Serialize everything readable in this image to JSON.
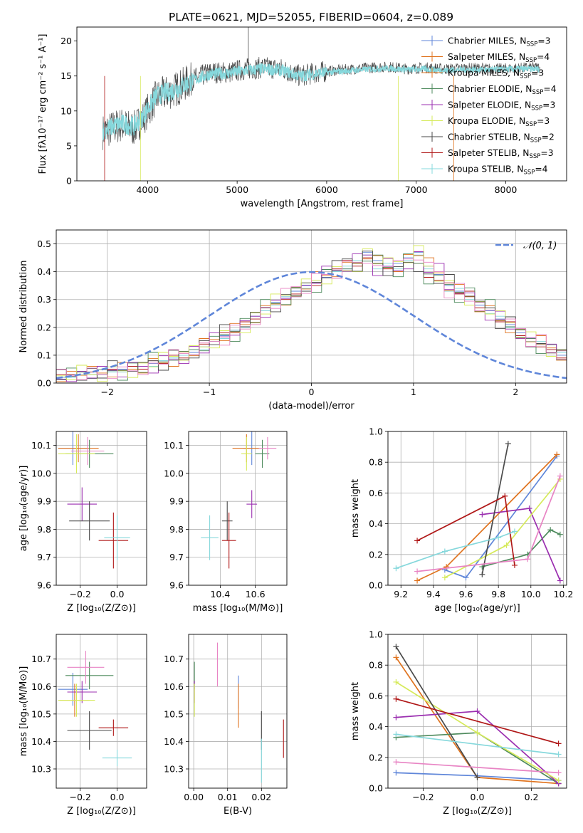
{
  "figure_title": "PLATE=0621, MJD=52055, FIBERID=0604, z=0.089",
  "colors": {
    "c0": "#5f86d9",
    "c1": "#e07420",
    "c2": "#4d8a5c",
    "c3": "#9b2fb0",
    "c4": "#d6ea5a",
    "c5": "#4a4a4a",
    "c6": "#b01818",
    "c7": "#e884c4",
    "c8": "#86d8dc"
  },
  "chart_data": [
    {
      "type": "line",
      "name": "spectrum",
      "xlabel": "wavelength [Angstrom, rest frame]",
      "ylabel": "Flux [fλ10⁻¹⁷ erg cm⁻² s⁻¹ A⁻¹]",
      "xlim": [
        3210,
        8680
      ],
      "ylim": [
        0,
        22
      ],
      "xticks": [
        4000,
        5000,
        6000,
        7000,
        8000
      ],
      "yticks": [
        0,
        5,
        10,
        15,
        20
      ],
      "legend_position": "top-right",
      "legend": [
        "Chabrier MILES, N_SSP=3",
        "Salpeter MILES, N_SSP=4",
        "Kroupa MILES, N_SSP=3",
        "Chabrier ELODIE, N_SSP=4",
        "Salpeter ELODIE, N_SSP=3",
        "Kroupa ELODIE, N_SSP=3",
        "Chabrier STELIB, N_SSP=2",
        "Salpeter STELIB, N_SSP=3",
        "Kroupa STELIB, N_SSP=4"
      ],
      "series": [
        {
          "color_key": "c5",
          "x": [
            3500,
            3700,
            3850,
            3950,
            4100,
            4300,
            4500,
            4700,
            4900,
            5100,
            5300,
            5500,
            5700,
            5900,
            6100,
            6300,
            6500,
            6700,
            6900,
            7100,
            7300,
            7500,
            7700,
            7900,
            8100,
            8300
          ],
          "y": [
            7.0,
            8.0,
            7.5,
            9.0,
            12.0,
            13.0,
            14.5,
            15.5,
            15.5,
            16.0,
            16.2,
            16.0,
            15.0,
            15.5,
            15.8,
            16.0,
            16.2,
            16.3,
            16.0,
            16.2,
            16.0,
            16.1,
            16.1,
            16.0,
            16.1,
            16.2
          ]
        },
        {
          "color_key": "c8",
          "x": [
            3500,
            3700,
            3850,
            3950,
            4100,
            4300,
            4500,
            4700,
            4900,
            5100,
            5300,
            5500,
            5700,
            5900,
            6100,
            6300,
            6500,
            6700,
            6900,
            7100,
            7300,
            7500,
            7700,
            7900,
            8100,
            8300
          ],
          "y": [
            7.2,
            8.2,
            7.8,
            9.3,
            12.2,
            13.0,
            14.3,
            15.3,
            15.4,
            15.8,
            16.0,
            15.8,
            15.0,
            15.4,
            15.6,
            15.8,
            16.0,
            16.1,
            15.9,
            16.0,
            15.8,
            15.9,
            15.9,
            15.9,
            16.0,
            16.0
          ]
        }
      ]
    },
    {
      "type": "bar",
      "name": "residuals",
      "xlabel": "(data-model)/error",
      "ylabel": "Normed distribution",
      "xlim": [
        -2.5,
        2.5
      ],
      "ylim": [
        0,
        0.55
      ],
      "xticks": [
        -2,
        -1,
        0,
        1,
        2
      ],
      "yticks": [
        0.0,
        0.1,
        0.2,
        0.3,
        0.4,
        0.5
      ],
      "legend_position": "top-right",
      "legend": [
        "𝒩(0, 1)"
      ],
      "bin_width": 0.1,
      "series": [
        {
          "color_key": "c0",
          "bins_start": -2.5,
          "values": [
            0.02,
            0.03,
            0.04,
            0.03,
            0.03,
            0.04,
            0.05,
            0.05,
            0.06,
            0.07,
            0.08,
            0.09,
            0.1,
            0.11,
            0.13,
            0.15,
            0.17,
            0.19,
            0.21,
            0.24,
            0.26,
            0.29,
            0.31,
            0.33,
            0.35,
            0.37,
            0.38,
            0.4,
            0.41,
            0.43,
            0.47,
            0.44,
            0.42,
            0.43,
            0.45,
            0.47,
            0.42,
            0.39,
            0.35,
            0.33,
            0.31,
            0.28,
            0.26,
            0.23,
            0.21,
            0.18,
            0.16,
            0.14,
            0.12,
            0.1
          ]
        },
        {
          "color_key": "c6",
          "bins_start": -2.5,
          "values": [
            0.03,
            0.03,
            0.04,
            0.04,
            0.03,
            0.05,
            0.04,
            0.06,
            0.05,
            0.08,
            0.07,
            0.1,
            0.09,
            0.12,
            0.14,
            0.15,
            0.18,
            0.18,
            0.22,
            0.23,
            0.27,
            0.28,
            0.3,
            0.32,
            0.36,
            0.35,
            0.39,
            0.41,
            0.44,
            0.42,
            0.45,
            0.43,
            0.41,
            0.4,
            0.44,
            0.43,
            0.38,
            0.37,
            0.36,
            0.32,
            0.33,
            0.27,
            0.27,
            0.22,
            0.22,
            0.17,
            0.16,
            0.13,
            0.12,
            0.09
          ]
        },
        {
          "color_key": "c8",
          "bins_start": -2.5,
          "values": [
            0.02,
            0.02,
            0.03,
            0.03,
            0.03,
            0.04,
            0.04,
            0.05,
            0.06,
            0.06,
            0.08,
            0.09,
            0.1,
            0.12,
            0.12,
            0.15,
            0.16,
            0.19,
            0.2,
            0.24,
            0.26,
            0.28,
            0.31,
            0.34,
            0.34,
            0.37,
            0.39,
            0.4,
            0.42,
            0.44,
            0.46,
            0.41,
            0.43,
            0.41,
            0.44,
            0.46,
            0.41,
            0.4,
            0.33,
            0.34,
            0.3,
            0.29,
            0.25,
            0.24,
            0.2,
            0.19,
            0.15,
            0.15,
            0.11,
            0.11
          ]
        }
      ],
      "reference_curve": {
        "name": "𝒩(0, 1)",
        "color_key": "c0"
      }
    },
    {
      "type": "scatter",
      "name": "age-vs-Z",
      "xlabel": "Z [log₁₀(Z/Z⊙)]",
      "ylabel": "age  [log₁₀(age/yr)]",
      "xlim": [
        -0.33,
        0.16
      ],
      "ylim": [
        9.6,
        10.15
      ],
      "xticks": [
        -0.2,
        0.0
      ],
      "yticks": [
        9.6,
        9.7,
        9.8,
        9.9,
        10.0,
        10.1
      ],
      "points": [
        {
          "color_key": "c0",
          "x": -0.24,
          "y": 10.09,
          "xerr": 0.08,
          "yerr": 0.06
        },
        {
          "color_key": "c1",
          "x": -0.21,
          "y": 10.09,
          "xerr": 0.11,
          "yerr": 0.05
        },
        {
          "color_key": "c2",
          "x": -0.15,
          "y": 10.07,
          "xerr": 0.13,
          "yerr": 0.05
        },
        {
          "color_key": "c3",
          "x": -0.19,
          "y": 9.89,
          "xerr": 0.08,
          "yerr": 0.06
        },
        {
          "color_key": "c4",
          "x": -0.22,
          "y": 10.07,
          "xerr": 0.1,
          "yerr": 0.07
        },
        {
          "color_key": "c5",
          "x": -0.15,
          "y": 9.83,
          "xerr": 0.11,
          "yerr": 0.07
        },
        {
          "color_key": "c6",
          "x": -0.02,
          "y": 9.76,
          "xerr": 0.08,
          "yerr": 0.1
        },
        {
          "color_key": "c7",
          "x": -0.16,
          "y": 10.08,
          "xerr": 0.09,
          "yerr": 0.05
        },
        {
          "color_key": "c8",
          "x": 0.0,
          "y": 9.77,
          "xerr": 0.07,
          "yerr": 0.08
        }
      ]
    },
    {
      "type": "scatter",
      "name": "age-vs-mass",
      "xlabel": "mass [log₁₀(M/M⊙)]",
      "ylabel": "",
      "xlim": [
        10.22,
        10.78
      ],
      "ylim": [
        9.6,
        10.15
      ],
      "xticks": [
        10.4,
        10.6
      ],
      "yticks": [
        9.6,
        9.7,
        9.8,
        9.9,
        10.0,
        10.1
      ],
      "points": [
        {
          "color_key": "c0",
          "x": 10.58,
          "y": 10.09,
          "xerr": 0.05,
          "yerr": 0.06
        },
        {
          "color_key": "c1",
          "x": 10.55,
          "y": 10.09,
          "xerr": 0.08,
          "yerr": 0.05
        },
        {
          "color_key": "c2",
          "x": 10.64,
          "y": 10.07,
          "xerr": 0.04,
          "yerr": 0.05
        },
        {
          "color_key": "c3",
          "x": 10.58,
          "y": 9.89,
          "xerr": 0.03,
          "yerr": 0.05
        },
        {
          "color_key": "c4",
          "x": 10.55,
          "y": 10.07,
          "xerr": 0.03,
          "yerr": 0.06
        },
        {
          "color_key": "c5",
          "x": 10.44,
          "y": 9.83,
          "xerr": 0.03,
          "yerr": 0.07
        },
        {
          "color_key": "c6",
          "x": 10.45,
          "y": 9.76,
          "xerr": 0.04,
          "yerr": 0.1
        },
        {
          "color_key": "c7",
          "x": 10.67,
          "y": 10.09,
          "xerr": 0.05,
          "yerr": 0.04
        },
        {
          "color_key": "c8",
          "x": 10.34,
          "y": 9.77,
          "xerr": 0.05,
          "yerr": 0.08
        }
      ]
    },
    {
      "type": "line",
      "name": "mass-weight-vs-age",
      "xlabel": "age  [log₁₀(age/yr)]",
      "ylabel": "mass weight",
      "xlim": [
        9.12,
        10.22
      ],
      "ylim": [
        0,
        1.0
      ],
      "xticks": [
        9.2,
        9.4,
        9.6,
        9.8,
        10.0,
        10.2
      ],
      "yticks": [
        0.0,
        0.2,
        0.4,
        0.6,
        0.8,
        1.0
      ],
      "series": [
        {
          "color_key": "c0",
          "x": [
            9.47,
            9.6,
            10.16
          ],
          "y": [
            0.1,
            0.05,
            0.84
          ]
        },
        {
          "color_key": "c1",
          "x": [
            9.3,
            9.48,
            10.16
          ],
          "y": [
            0.03,
            0.12,
            0.85
          ]
        },
        {
          "color_key": "c2",
          "x": [
            9.7,
            9.98,
            10.12,
            10.18
          ],
          "y": [
            0.12,
            0.2,
            0.36,
            0.33
          ]
        },
        {
          "color_key": "c3",
          "x": [
            9.7,
            9.99,
            10.18
          ],
          "y": [
            0.46,
            0.5,
            0.03
          ]
        },
        {
          "color_key": "c4",
          "x": [
            9.47,
            9.85,
            10.18
          ],
          "y": [
            0.05,
            0.26,
            0.69
          ]
        },
        {
          "color_key": "c5",
          "x": [
            9.7,
            9.86
          ],
          "y": [
            0.07,
            0.92
          ]
        },
        {
          "color_key": "c6",
          "x": [
            9.3,
            9.84,
            9.9
          ],
          "y": [
            0.29,
            0.58,
            0.13
          ]
        },
        {
          "color_key": "c7",
          "x": [
            9.3,
            9.98,
            10.18
          ],
          "y": [
            0.09,
            0.17,
            0.71
          ]
        },
        {
          "color_key": "c8",
          "x": [
            9.17,
            9.47,
            9.8,
            9.9
          ],
          "y": [
            0.11,
            0.22,
            0.31,
            0.35
          ]
        }
      ]
    },
    {
      "type": "scatter",
      "name": "mass-vs-Z",
      "xlabel": "Z [log₁₀(Z/Z⊙)]",
      "ylabel": "mass [log₁₀(M/M⊙)]",
      "xlim": [
        -0.33,
        0.16
      ],
      "ylim": [
        10.23,
        10.79
      ],
      "xticks": [
        -0.2,
        0.0
      ],
      "yticks": [
        10.3,
        10.4,
        10.5,
        10.6,
        10.7
      ],
      "points": [
        {
          "color_key": "c0",
          "x": -0.24,
          "y": 10.59,
          "xerr": 0.08,
          "yerr": 0.06
        },
        {
          "color_key": "c1",
          "x": -0.23,
          "y": 10.55,
          "xerr": 0.08,
          "yerr": 0.06
        },
        {
          "color_key": "c2",
          "x": -0.15,
          "y": 10.64,
          "xerr": 0.13,
          "yerr": 0.05
        },
        {
          "color_key": "c3",
          "x": -0.19,
          "y": 10.58,
          "xerr": 0.08,
          "yerr": 0.04
        },
        {
          "color_key": "c4",
          "x": -0.22,
          "y": 10.55,
          "xerr": 0.1,
          "yerr": 0.06
        },
        {
          "color_key": "c5",
          "x": -0.15,
          "y": 10.44,
          "xerr": 0.12,
          "yerr": 0.07
        },
        {
          "color_key": "c6",
          "x": -0.02,
          "y": 10.45,
          "xerr": 0.08,
          "yerr": 0.03
        },
        {
          "color_key": "c7",
          "x": -0.17,
          "y": 10.67,
          "xerr": 0.1,
          "yerr": 0.06
        },
        {
          "color_key": "c8",
          "x": 0.0,
          "y": 10.34,
          "xerr": 0.08,
          "yerr": 0.03
        }
      ]
    },
    {
      "type": "scatter",
      "name": "mass-vs-EBV",
      "xlabel": "E(B-V)",
      "ylabel": "",
      "xlim": [
        -0.0015,
        0.0275
      ],
      "ylim": [
        10.23,
        10.79
      ],
      "xticks": [
        0.0,
        0.01,
        0.02
      ],
      "yticks": [
        10.3,
        10.4,
        10.5,
        10.6,
        10.7
      ],
      "points": [
        {
          "color_key": "c0",
          "x": 0.0132,
          "y": 10.58,
          "xerr": 0,
          "yerr": 0.06
        },
        {
          "color_key": "c1",
          "x": 0.0132,
          "y": 10.53,
          "xerr": 0,
          "yerr": 0.08
        },
        {
          "color_key": "c2",
          "x": 0.0002,
          "y": 10.64,
          "xerr": 0,
          "yerr": 0.05
        },
        {
          "color_key": "c3",
          "x": 0.0002,
          "y": 10.58,
          "xerr": 0,
          "yerr": 0.04
        },
        {
          "color_key": "c4",
          "x": 0.0002,
          "y": 10.55,
          "xerr": 0,
          "yerr": 0.06
        },
        {
          "color_key": "c5",
          "x": 0.02,
          "y": 10.44,
          "xerr": 0,
          "yerr": 0.07
        },
        {
          "color_key": "c6",
          "x": 0.0265,
          "y": 10.41,
          "xerr": 0,
          "yerr": 0.07
        },
        {
          "color_key": "c7",
          "x": 0.007,
          "y": 10.68,
          "xerr": 0,
          "yerr": 0.08
        },
        {
          "color_key": "c8",
          "x": 0.02,
          "y": 10.33,
          "xerr": 0,
          "yerr": 0.08
        }
      ]
    },
    {
      "type": "line",
      "name": "mass-weight-vs-Z",
      "xlabel": "Z [log₁₀(Z/Z⊙)]",
      "ylabel": "mass weight",
      "xlim": [
        -0.33,
        0.33
      ],
      "ylim": [
        0,
        1.0
      ],
      "xticks": [
        -0.2,
        0.0,
        0.2
      ],
      "yticks": [
        0.0,
        0.2,
        0.4,
        0.6,
        0.8,
        1.0
      ],
      "series": [
        {
          "color_key": "c0",
          "x": [
            -0.3,
            0.0,
            0.3
          ],
          "y": [
            0.1,
            0.08,
            0.05
          ]
        },
        {
          "color_key": "c1",
          "x": [
            -0.3,
            0.0,
            0.3
          ],
          "y": [
            0.85,
            0.07,
            0.03
          ]
        },
        {
          "color_key": "c2",
          "x": [
            -0.3,
            0.0,
            0.3
          ],
          "y": [
            0.33,
            0.36,
            0.03
          ]
        },
        {
          "color_key": "c3",
          "x": [
            -0.3,
            0.0,
            0.3
          ],
          "y": [
            0.46,
            0.5,
            0.03
          ]
        },
        {
          "color_key": "c4",
          "x": [
            -0.3,
            0.0,
            0.3
          ],
          "y": [
            0.69,
            0.36,
            0.05
          ]
        },
        {
          "color_key": "c5",
          "x": [
            -0.3,
            0.0
          ],
          "y": [
            0.92,
            0.07
          ]
        },
        {
          "color_key": "c6",
          "x": [
            -0.3,
            0.3
          ],
          "y": [
            0.58,
            0.29
          ]
        },
        {
          "color_key": "c7",
          "x": [
            -0.3,
            0.3
          ],
          "y": [
            0.17,
            0.1
          ]
        },
        {
          "color_key": "c8",
          "x": [
            -0.3,
            0.3
          ],
          "y": [
            0.35,
            0.22
          ]
        }
      ]
    }
  ]
}
